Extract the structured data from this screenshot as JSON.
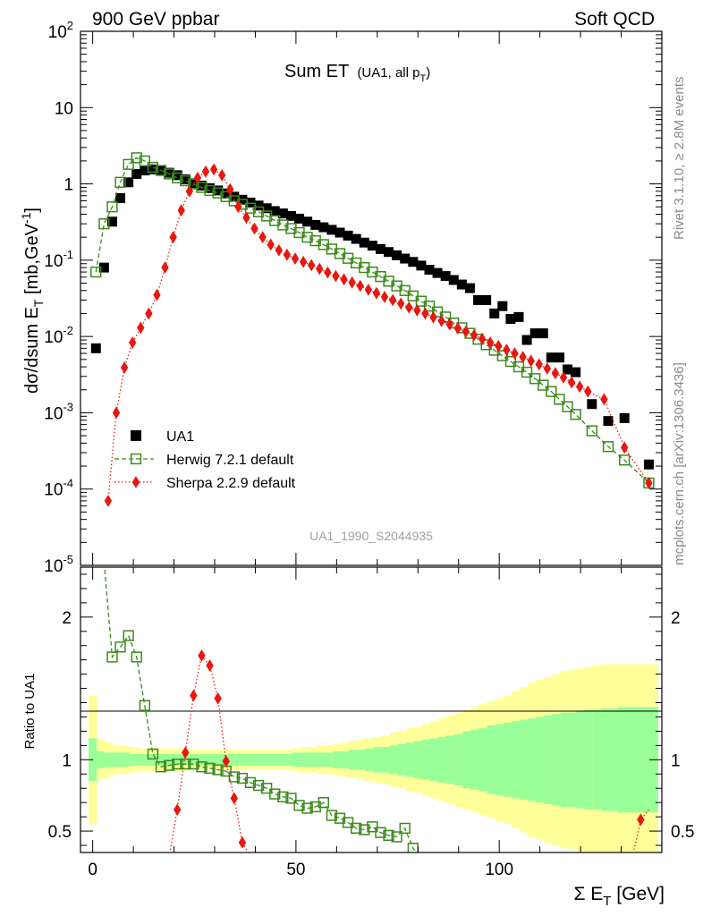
{
  "header": {
    "left_label": "900 GeV ppbar",
    "right_label": "Soft QCD"
  },
  "side": {
    "rivet_label": "Rivet 3.1.10, ≥ 2.8M events",
    "mcplots_label": "mcplots.cern.ch [arXiv:1306.3436]"
  },
  "chart_data": {
    "type": "scatter",
    "title": "Sum ET",
    "title_small_prefix": "(UA1, all p",
    "title_small_sub": "T",
    "title_small_suffix": ")",
    "watermark": "UA1_1990_S2044935",
    "xlabel": "Σ E",
    "xlabel_sub": "T",
    "xlabel_unit": " [GeV]",
    "ylabel": "dσ/dsum E",
    "ylabel_sub": "T",
    "ylabel_unit": " [mb,GeV",
    "ylabel_sup": "-1",
    "ylabel_close": "]",
    "ratio_ylabel": "Ratio to UA1",
    "xlim": [
      -3,
      140
    ],
    "ylim": [
      1e-05,
      100
    ],
    "yscale": "log",
    "ratio_ylim": [
      0.35,
      2.35
    ],
    "x_ticks": [
      0,
      50,
      100
    ],
    "y_ticks": [
      {
        "base": "10",
        "exp": "-5",
        "value": 1e-05
      },
      {
        "base": "10",
        "exp": "-4",
        "value": 0.0001
      },
      {
        "base": "10",
        "exp": "-3",
        "value": 0.001
      },
      {
        "base": "10",
        "exp": "-2",
        "value": 0.01
      },
      {
        "base": "10",
        "exp": "-1",
        "value": 0.1
      },
      {
        "base": "1",
        "exp": "",
        "value": 1
      },
      {
        "base": "10",
        "exp": "",
        "value": 10
      },
      {
        "base": "10",
        "exp": "2",
        "value": 100
      }
    ],
    "ratio_ticks": [
      {
        "label": "0.5",
        "value": 0.5
      },
      {
        "label": "1",
        "value": 1
      },
      {
        "label": "2",
        "value": 2
      }
    ],
    "legend_placement": "lower-left",
    "series": [
      {
        "name": "UA1",
        "color": "#000000",
        "marker": "square",
        "x": [
          0.8,
          2.8,
          4.8,
          6.8,
          8.8,
          10.8,
          12.8,
          14.8,
          16.8,
          18.8,
          20.8,
          22.8,
          24.8,
          26.8,
          28.8,
          30.8,
          32.8,
          34.8,
          36.8,
          38.8,
          40.8,
          42.8,
          44.8,
          46.8,
          48.8,
          50.8,
          52.8,
          54.8,
          56.8,
          58.8,
          60.8,
          62.8,
          64.8,
          66.8,
          68.8,
          70.8,
          72.8,
          74.8,
          76.8,
          78.8,
          80.8,
          82.8,
          84.8,
          86.8,
          88.8,
          90.8,
          92.8,
          94.8,
          96.8,
          98.8,
          100.8,
          102.8,
          104.8,
          106.8,
          108.8,
          110.8,
          112.8,
          114.8,
          116.8,
          118.8,
          122.8,
          126.8,
          130.8,
          136.8
        ],
        "y": [
          0.007,
          0.08,
          0.32,
          0.65,
          1.05,
          1.35,
          1.5,
          1.55,
          1.5,
          1.4,
          1.3,
          1.15,
          1.02,
          0.95,
          0.88,
          0.82,
          0.75,
          0.68,
          0.62,
          0.57,
          0.52,
          0.48,
          0.44,
          0.41,
          0.38,
          0.35,
          0.32,
          0.29,
          0.27,
          0.25,
          0.23,
          0.21,
          0.19,
          0.17,
          0.155,
          0.14,
          0.128,
          0.116,
          0.105,
          0.095,
          0.085,
          0.075,
          0.068,
          0.062,
          0.055,
          0.048,
          0.043,
          0.03,
          0.03,
          0.02,
          0.025,
          0.017,
          0.018,
          0.009,
          0.011,
          0.011,
          0.0053,
          0.0053,
          0.0037,
          0.0034,
          0.0013,
          0.00078,
          0.00085,
          0.00021
        ]
      },
      {
        "name": "Herwig 7.2.1 default",
        "color": "#3a8a1a",
        "marker": "open-square",
        "x": [
          0.8,
          2.8,
          4.8,
          6.8,
          8.8,
          10.8,
          12.8,
          14.8,
          16.8,
          18.8,
          20.8,
          22.8,
          24.8,
          26.8,
          28.8,
          30.8,
          32.8,
          34.8,
          36.8,
          38.8,
          40.8,
          42.8,
          44.8,
          46.8,
          48.8,
          50.8,
          52.8,
          54.8,
          56.8,
          58.8,
          60.8,
          62.8,
          64.8,
          66.8,
          68.8,
          70.8,
          72.8,
          74.8,
          76.8,
          78.8,
          80.8,
          82.8,
          84.8,
          86.8,
          88.8,
          90.8,
          92.8,
          94.8,
          96.8,
          98.8,
          100.8,
          102.8,
          104.8,
          106.8,
          108.8,
          110.8,
          112.8,
          114.8,
          116.8,
          118.8,
          122.8,
          126.8,
          130.8,
          136.8
        ],
        "y": [
          0.07,
          0.3,
          0.5,
          1.05,
          1.8,
          2.2,
          2.0,
          1.65,
          1.5,
          1.35,
          1.2,
          1.1,
          1.0,
          0.9,
          0.82,
          0.76,
          0.68,
          0.6,
          0.54,
          0.48,
          0.43,
          0.38,
          0.33,
          0.29,
          0.26,
          0.23,
          0.2,
          0.18,
          0.16,
          0.14,
          0.122,
          0.106,
          0.092,
          0.08,
          0.07,
          0.061,
          0.053,
          0.046,
          0.04,
          0.034,
          0.029,
          0.025,
          0.021,
          0.018,
          0.015,
          0.013,
          0.011,
          0.0092,
          0.0078,
          0.0066,
          0.0056,
          0.0047,
          0.004,
          0.0034,
          0.0028,
          0.0023,
          0.0019,
          0.0015,
          0.0012,
          0.00095,
          0.00058,
          0.00036,
          0.00024,
          0.00012
        ]
      },
      {
        "name": "Sherpa 2.2.9 default",
        "color": "#e8170f",
        "marker": "diamond",
        "x": [
          3.8,
          5.8,
          7.8,
          9.8,
          11.8,
          13.8,
          15.8,
          17.8,
          19.8,
          21.8,
          23.8,
          25.8,
          27.8,
          29.8,
          31.8,
          33.8,
          35.8,
          37.8,
          39.8,
          41.8,
          43.8,
          45.8,
          47.8,
          49.8,
          51.8,
          53.8,
          55.8,
          57.8,
          59.8,
          61.8,
          63.8,
          65.8,
          67.8,
          69.8,
          71.8,
          73.8,
          75.8,
          77.8,
          79.8,
          81.8,
          83.8,
          85.8,
          87.8,
          89.8,
          91.8,
          93.8,
          95.8,
          97.8,
          99.8,
          101.8,
          103.8,
          105.8,
          107.8,
          109.8,
          111.8,
          113.8,
          115.8,
          117.8,
          119.8,
          121.8,
          125.8,
          130.8,
          136.8
        ],
        "y": [
          7e-05,
          0.001,
          0.0039,
          0.0083,
          0.013,
          0.02,
          0.035,
          0.08,
          0.2,
          0.45,
          0.8,
          1.2,
          1.45,
          1.55,
          1.3,
          0.85,
          0.5,
          0.36,
          0.26,
          0.2,
          0.16,
          0.135,
          0.118,
          0.105,
          0.095,
          0.086,
          0.077,
          0.069,
          0.062,
          0.056,
          0.051,
          0.046,
          0.041,
          0.037,
          0.033,
          0.03,
          0.027,
          0.024,
          0.022,
          0.02,
          0.0178,
          0.016,
          0.0144,
          0.0128,
          0.0116,
          0.0104,
          0.0093,
          0.0083,
          0.0075,
          0.0067,
          0.006,
          0.0054,
          0.0048,
          0.0043,
          0.0038,
          0.0033,
          0.0029,
          0.0025,
          0.0022,
          0.0019,
          0.0015,
          0.00035,
          0.00012
        ]
      }
    ],
    "ratio": {
      "series": [
        {
          "name": "Herwig 7.2.1 default",
          "x": [
            4.8,
            6.8,
            8.8,
            10.8,
            12.8,
            14.8,
            16.8,
            18.8,
            20.8,
            22.8,
            24.8,
            26.8,
            28.8,
            30.8,
            32.8,
            34.8,
            36.8,
            38.8,
            40.8,
            42.8,
            44.8,
            46.8,
            48.8,
            50.8,
            52.8,
            54.8,
            56.8,
            58.8,
            60.8,
            62.8,
            64.8,
            66.8,
            68.8,
            70.8,
            72.8,
            74.8,
            76.8,
            78.8
          ],
          "y": [
            1.72,
            1.79,
            1.87,
            1.72,
            1.38,
            1.04,
            0.95,
            0.96,
            0.97,
            0.97,
            0.97,
            0.95,
            0.94,
            0.93,
            0.92,
            0.88,
            0.87,
            0.84,
            0.82,
            0.8,
            0.76,
            0.74,
            0.73,
            0.68,
            0.66,
            0.67,
            0.7,
            0.61,
            0.59,
            0.56,
            0.52,
            0.51,
            0.53,
            0.49,
            0.47,
            0.46,
            0.52,
            0.38
          ]
        },
        {
          "name": "Sherpa 2.2.9 default",
          "x": [
            20.8,
            22.8,
            24.8,
            26.8,
            28.8,
            30.8,
            32.8,
            34.8,
            36.8,
            134.8
          ],
          "y": [
            0.65,
            1.05,
            1.45,
            1.73,
            1.66,
            1.43,
            0.99,
            0.73,
            0.42,
            0.58
          ]
        }
      ],
      "band_edges": [
        -1,
        1,
        3,
        5,
        7,
        9,
        11,
        13,
        15,
        17,
        19,
        21,
        23,
        25,
        27,
        29,
        31,
        33,
        35,
        37,
        39,
        41,
        43,
        45,
        47,
        49,
        51,
        53,
        55,
        57,
        59,
        61,
        63,
        65,
        67,
        69,
        71,
        73,
        75,
        77,
        79,
        81,
        83,
        85,
        87,
        89,
        91,
        93,
        95,
        97,
        99,
        101,
        103,
        105,
        107,
        109,
        111,
        113,
        115,
        117,
        119,
        121,
        123,
        125,
        127,
        129,
        131,
        133,
        135,
        137,
        139
      ],
      "band_stat": [
        0.15,
        0.06,
        0.05,
        0.05,
        0.05,
        0.04,
        0.04,
        0.04,
        0.04,
        0.04,
        0.04,
        0.04,
        0.04,
        0.04,
        0.04,
        0.04,
        0.04,
        0.04,
        0.04,
        0.04,
        0.04,
        0.04,
        0.04,
        0.04,
        0.04,
        0.05,
        0.05,
        0.05,
        0.05,
        0.05,
        0.06,
        0.06,
        0.07,
        0.07,
        0.08,
        0.09,
        0.09,
        0.1,
        0.11,
        0.12,
        0.13,
        0.14,
        0.15,
        0.16,
        0.17,
        0.18,
        0.2,
        0.21,
        0.22,
        0.24,
        0.25,
        0.26,
        0.27,
        0.28,
        0.29,
        0.3,
        0.31,
        0.32,
        0.33,
        0.33,
        0.34,
        0.35,
        0.35,
        0.36,
        0.36,
        0.37,
        0.37,
        0.37,
        0.37,
        0.37
      ],
      "band_total": [
        0.45,
        0.14,
        0.12,
        0.1,
        0.1,
        0.09,
        0.08,
        0.08,
        0.08,
        0.08,
        0.08,
        0.08,
        0.07,
        0.07,
        0.07,
        0.07,
        0.07,
        0.07,
        0.07,
        0.07,
        0.07,
        0.07,
        0.07,
        0.07,
        0.07,
        0.08,
        0.09,
        0.09,
        0.1,
        0.1,
        0.11,
        0.12,
        0.13,
        0.14,
        0.15,
        0.16,
        0.17,
        0.19,
        0.2,
        0.22,
        0.23,
        0.25,
        0.27,
        0.29,
        0.31,
        0.33,
        0.35,
        0.37,
        0.39,
        0.41,
        0.43,
        0.45,
        0.48,
        0.51,
        0.54,
        0.56,
        0.58,
        0.6,
        0.62,
        0.63,
        0.64,
        0.65,
        0.66,
        0.67,
        0.67,
        0.67,
        0.67,
        0.67,
        0.67,
        0.67
      ],
      "band_colors": {
        "total": "#ffff99",
        "stat": "#99ff99"
      }
    }
  }
}
